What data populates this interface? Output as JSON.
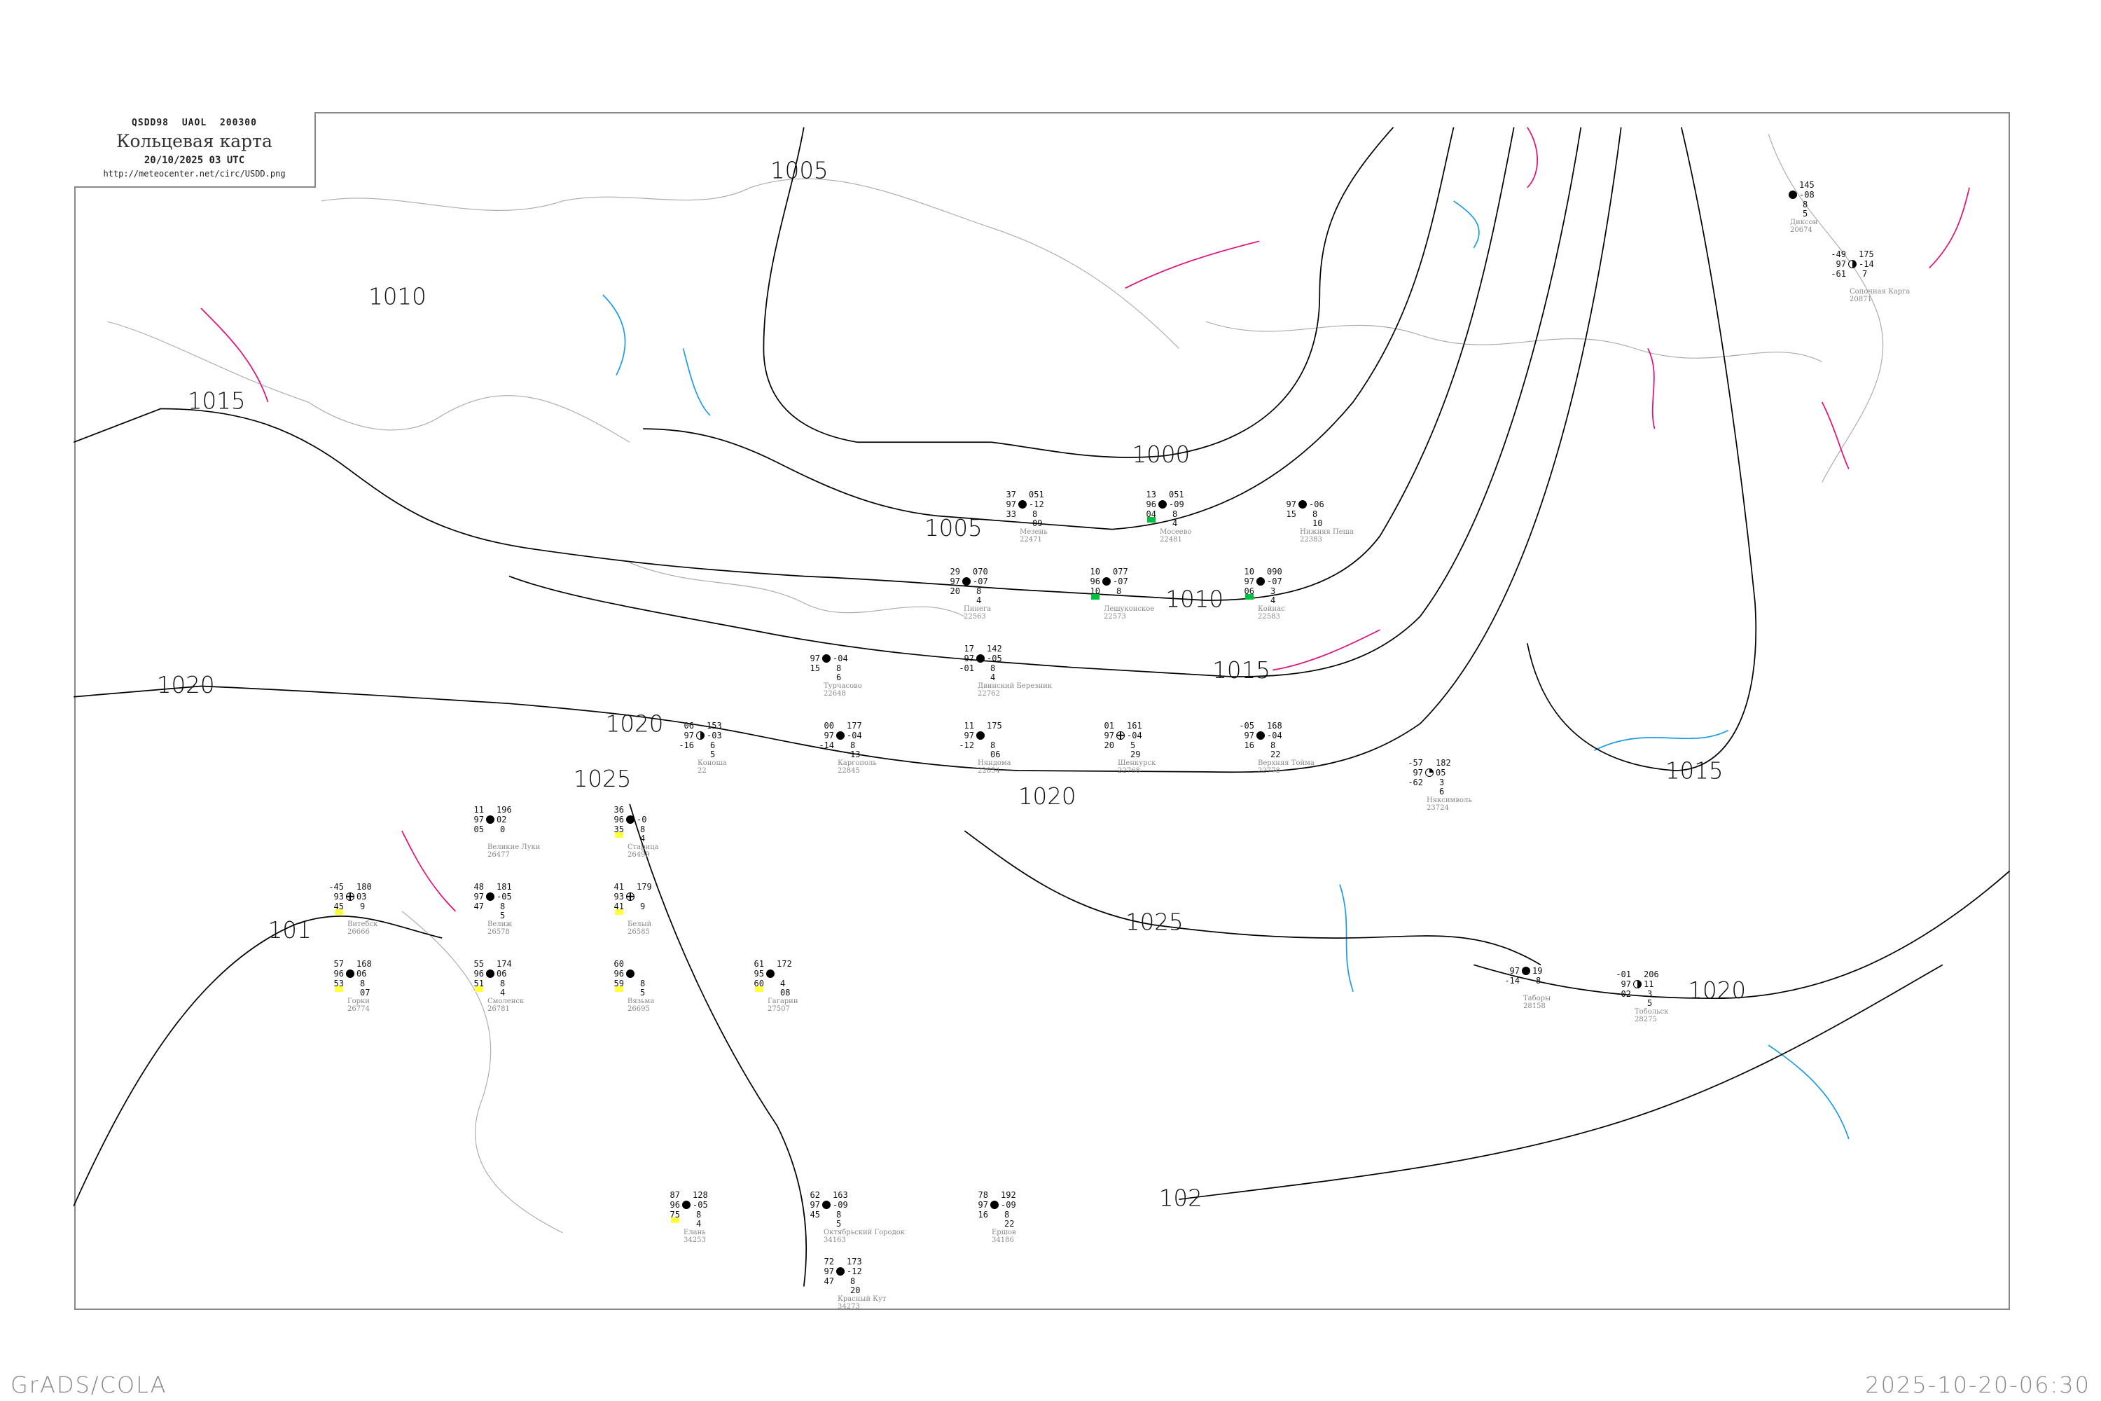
{
  "header": {
    "code": "QSDD98 UAOL 200300",
    "title": "Кольцевая карта",
    "datetime": "20/10/2025 03 UTC",
    "url": "http://meteocenter.net/circ/USDD.png"
  },
  "footer": {
    "software": "GrADS/COLA",
    "generated": "2025-10-20-06:30"
  },
  "colors": {
    "isobar": "#000000",
    "coastline": "#aaaaaa",
    "isotherm_warm": "#e0107a",
    "isotherm_cold": "#1e9be8",
    "precip_green": "#00c040",
    "precip_yellow": "#ffff40",
    "snow_blue": "#3a8fe8"
  },
  "isobars": [
    "1000",
    "1005",
    "1005",
    "1010",
    "1010",
    "1015",
    "1015",
    "1015",
    "1020",
    "1020",
    "1020",
    "1020",
    "1025",
    "1025",
    "101",
    "102"
  ],
  "stations": [
    {
      "name": "Мезень",
      "id": "22471",
      "tl": "37",
      "ml": "97",
      "bl": "33",
      "tr": "051",
      "mr": "-12",
      "br": "8",
      "br2": "09",
      "sym": "filled"
    },
    {
      "name": "Мосеево",
      "id": "22481",
      "tl": "13",
      "ml": "96",
      "bl": "04",
      "tr": "051",
      "mr": "-09",
      "br": "8",
      "br2": "4",
      "sym": "filled",
      "mark": "green"
    },
    {
      "name": "Пинега",
      "id": "22563",
      "tl": "29",
      "ml": "97",
      "bl": "20",
      "tr": "070",
      "mr": "-07",
      "br": "8",
      "br2": "4",
      "sym": "filled"
    },
    {
      "name": "Лешуконское",
      "id": "22573",
      "tl": "10",
      "ml": "96",
      "bl": "10",
      "tr": "077",
      "mr": "-07",
      "br": "8",
      "br2": "",
      "sym": "filled",
      "mark": "green"
    },
    {
      "name": "Койнас",
      "id": "22583",
      "tl": "10",
      "ml": "97",
      "bl": "06",
      "tr": "090",
      "mr": "-07",
      "br": "3",
      "br2": "4",
      "sym": "filled",
      "mark": "green"
    },
    {
      "name": "Нижняя Пеша",
      "id": "22383",
      "tl": "",
      "ml": "97",
      "bl": "15",
      "tr": "",
      "mr": "-06",
      "br": "8",
      "br2": "10",
      "sym": "filled"
    },
    {
      "name": "Няксимволь",
      "id": "23724",
      "tl": "-57",
      "ml": "97",
      "bl": "-62",
      "tr": "182",
      "mr": "05",
      "br": "3",
      "br2": "6",
      "sym": "quarter"
    },
    {
      "name": "Сопочная Карга",
      "id": "20871",
      "tl": "-49",
      "ml": "97",
      "bl": "-61",
      "tr": "175",
      "mr": "-14",
      "br": "7",
      "br2": "",
      "sym": "half"
    },
    {
      "name": "Диксон",
      "id": "20674",
      "tl": "",
      "ml": "",
      "bl": "",
      "tr": "145",
      "mr": "-08",
      "br": "8",
      "br2": "5",
      "sym": "filled"
    },
    {
      "name": "Великие Луки",
      "id": "26477",
      "tl": "11",
      "ml": "97",
      "bl": "05",
      "tr": "196",
      "mr": "02",
      "br": "0",
      "br2": "",
      "sym": "filled"
    },
    {
      "name": "Велиж",
      "id": "26578",
      "tl": "48",
      "ml": "97",
      "bl": "47",
      "tr": "181",
      "mr": "-05",
      "br": "8",
      "br2": "5",
      "sym": "filled"
    },
    {
      "name": "Витебск",
      "id": "26666",
      "tl": "-45",
      "ml": "93",
      "bl": "45",
      "tr": "180",
      "mr": "03",
      "br": "9",
      "br2": "",
      "sym": "cross",
      "mark": "yellow"
    },
    {
      "name": "Белый",
      "id": "26585",
      "tl": "41",
      "ml": "93",
      "bl": "41",
      "tr": "179",
      "mr": "",
      "br": "9",
      "br2": "",
      "sym": "cross",
      "mark": "yellow"
    },
    {
      "name": "Смоленск",
      "id": "26781",
      "tl": "55",
      "ml": "96",
      "bl": "51",
      "tr": "174",
      "mr": "06",
      "br": "8",
      "br2": "4",
      "sym": "filled",
      "mark": "yellow"
    },
    {
      "name": "Горки",
      "id": "26774",
      "tl": "57",
      "ml": "96",
      "bl": "53",
      "tr": "168",
      "mr": "06",
      "br": "8",
      "br2": "07",
      "sym": "filled",
      "mark": "yellow"
    },
    {
      "name": "Вязьма",
      "id": "26695",
      "tl": "60",
      "ml": "96",
      "bl": "59",
      "tr": "",
      "mr": "",
      "br": "8",
      "br2": "5",
      "sym": "filled",
      "mark": "yellow"
    },
    {
      "name": "Гагарин",
      "id": "27507",
      "tl": "61",
      "ml": "95",
      "bl": "60",
      "tr": "172",
      "mr": "",
      "br": "4",
      "br2": "08",
      "sym": "filled",
      "mark": "yellow"
    },
    {
      "name": "Старица",
      "id": "26499",
      "tl": "36",
      "ml": "96",
      "bl": "35",
      "tr": "",
      "mr": "-0",
      "br": "8",
      "br2": "4",
      "sym": "filled",
      "mark": "yellow"
    },
    {
      "name": "Октябрьский Городок",
      "id": "34163",
      "tl": "62",
      "ml": "97",
      "bl": "45",
      "tr": "163",
      "mr": "-09",
      "br": "8",
      "br2": "5",
      "sym": "filled"
    },
    {
      "name": "Красный Кут",
      "id": "34273",
      "tl": "72",
      "ml": "97",
      "bl": "47",
      "tr": "173",
      "mr": "-12",
      "br": "8",
      "br2": "20",
      "sym": "filled"
    },
    {
      "name": "Ершов",
      "id": "34186",
      "tl": "78",
      "ml": "97",
      "bl": "16",
      "tr": "192",
      "mr": "-09",
      "br": "8",
      "br2": "22",
      "sym": "filled"
    },
    {
      "name": "Елань",
      "id": "34253",
      "tl": "87",
      "ml": "96",
      "bl": "75",
      "tr": "128",
      "mr": "-05",
      "br": "8",
      "br2": "4",
      "sym": "filled",
      "mark": "yellow"
    },
    {
      "name": "Шенкурск",
      "id": "22768",
      "tl": "01",
      "ml": "97",
      "bl": "20",
      "tr": "161",
      "mr": "-04",
      "br": "5",
      "br2": "29",
      "sym": "cross"
    },
    {
      "name": "Верхняя Тойма",
      "id": "22778",
      "tl": "-05",
      "ml": "97",
      "bl": "16",
      "tr": "168",
      "mr": "-04",
      "br": "8",
      "br2": "22",
      "sym": "filled"
    },
    {
      "name": "Двинский Березник",
      "id": "22762",
      "tl": "17",
      "ml": "97",
      "bl": "-01",
      "tr": "142",
      "mr": "-05",
      "br": "8",
      "br2": "4",
      "sym": "filled"
    },
    {
      "name": "Каргополь",
      "id": "22845",
      "tl": "00",
      "ml": "97",
      "bl": "-14",
      "tr": "177",
      "mr": "-04",
      "br": "8",
      "br2": "13",
      "sym": "filled"
    },
    {
      "name": "Няндома",
      "id": "22854",
      "tl": "11",
      "ml": "97",
      "bl": "-12",
      "tr": "175",
      "mr": "",
      "br": "8",
      "br2": "06",
      "sym": "filled"
    },
    {
      "name": "Турчасово",
      "id": "22648",
      "tl": "",
      "ml": "97",
      "bl": "15",
      "tr": "",
      "mr": "-04",
      "br": "8",
      "br2": "6",
      "sym": "filled"
    },
    {
      "name": "Коноша",
      "id": "22",
      "tl": "06",
      "ml": "97",
      "bl": "-16",
      "tr": "153",
      "mr": "-03",
      "br": "6",
      "br2": "5",
      "sym": "half"
    },
    {
      "name": "Тобольск",
      "id": "28275",
      "tl": "-01",
      "ml": "97",
      "bl": "-02",
      "tr": "206",
      "mr": "11",
      "br": "3",
      "br2": "5",
      "sym": "half"
    },
    {
      "name": "Таборы",
      "id": "28158",
      "tl": "",
      "ml": "97",
      "bl": "-14",
      "tr": "",
      "mr": "19",
      "br": "8",
      "br2": "",
      "sym": "filled"
    }
  ]
}
